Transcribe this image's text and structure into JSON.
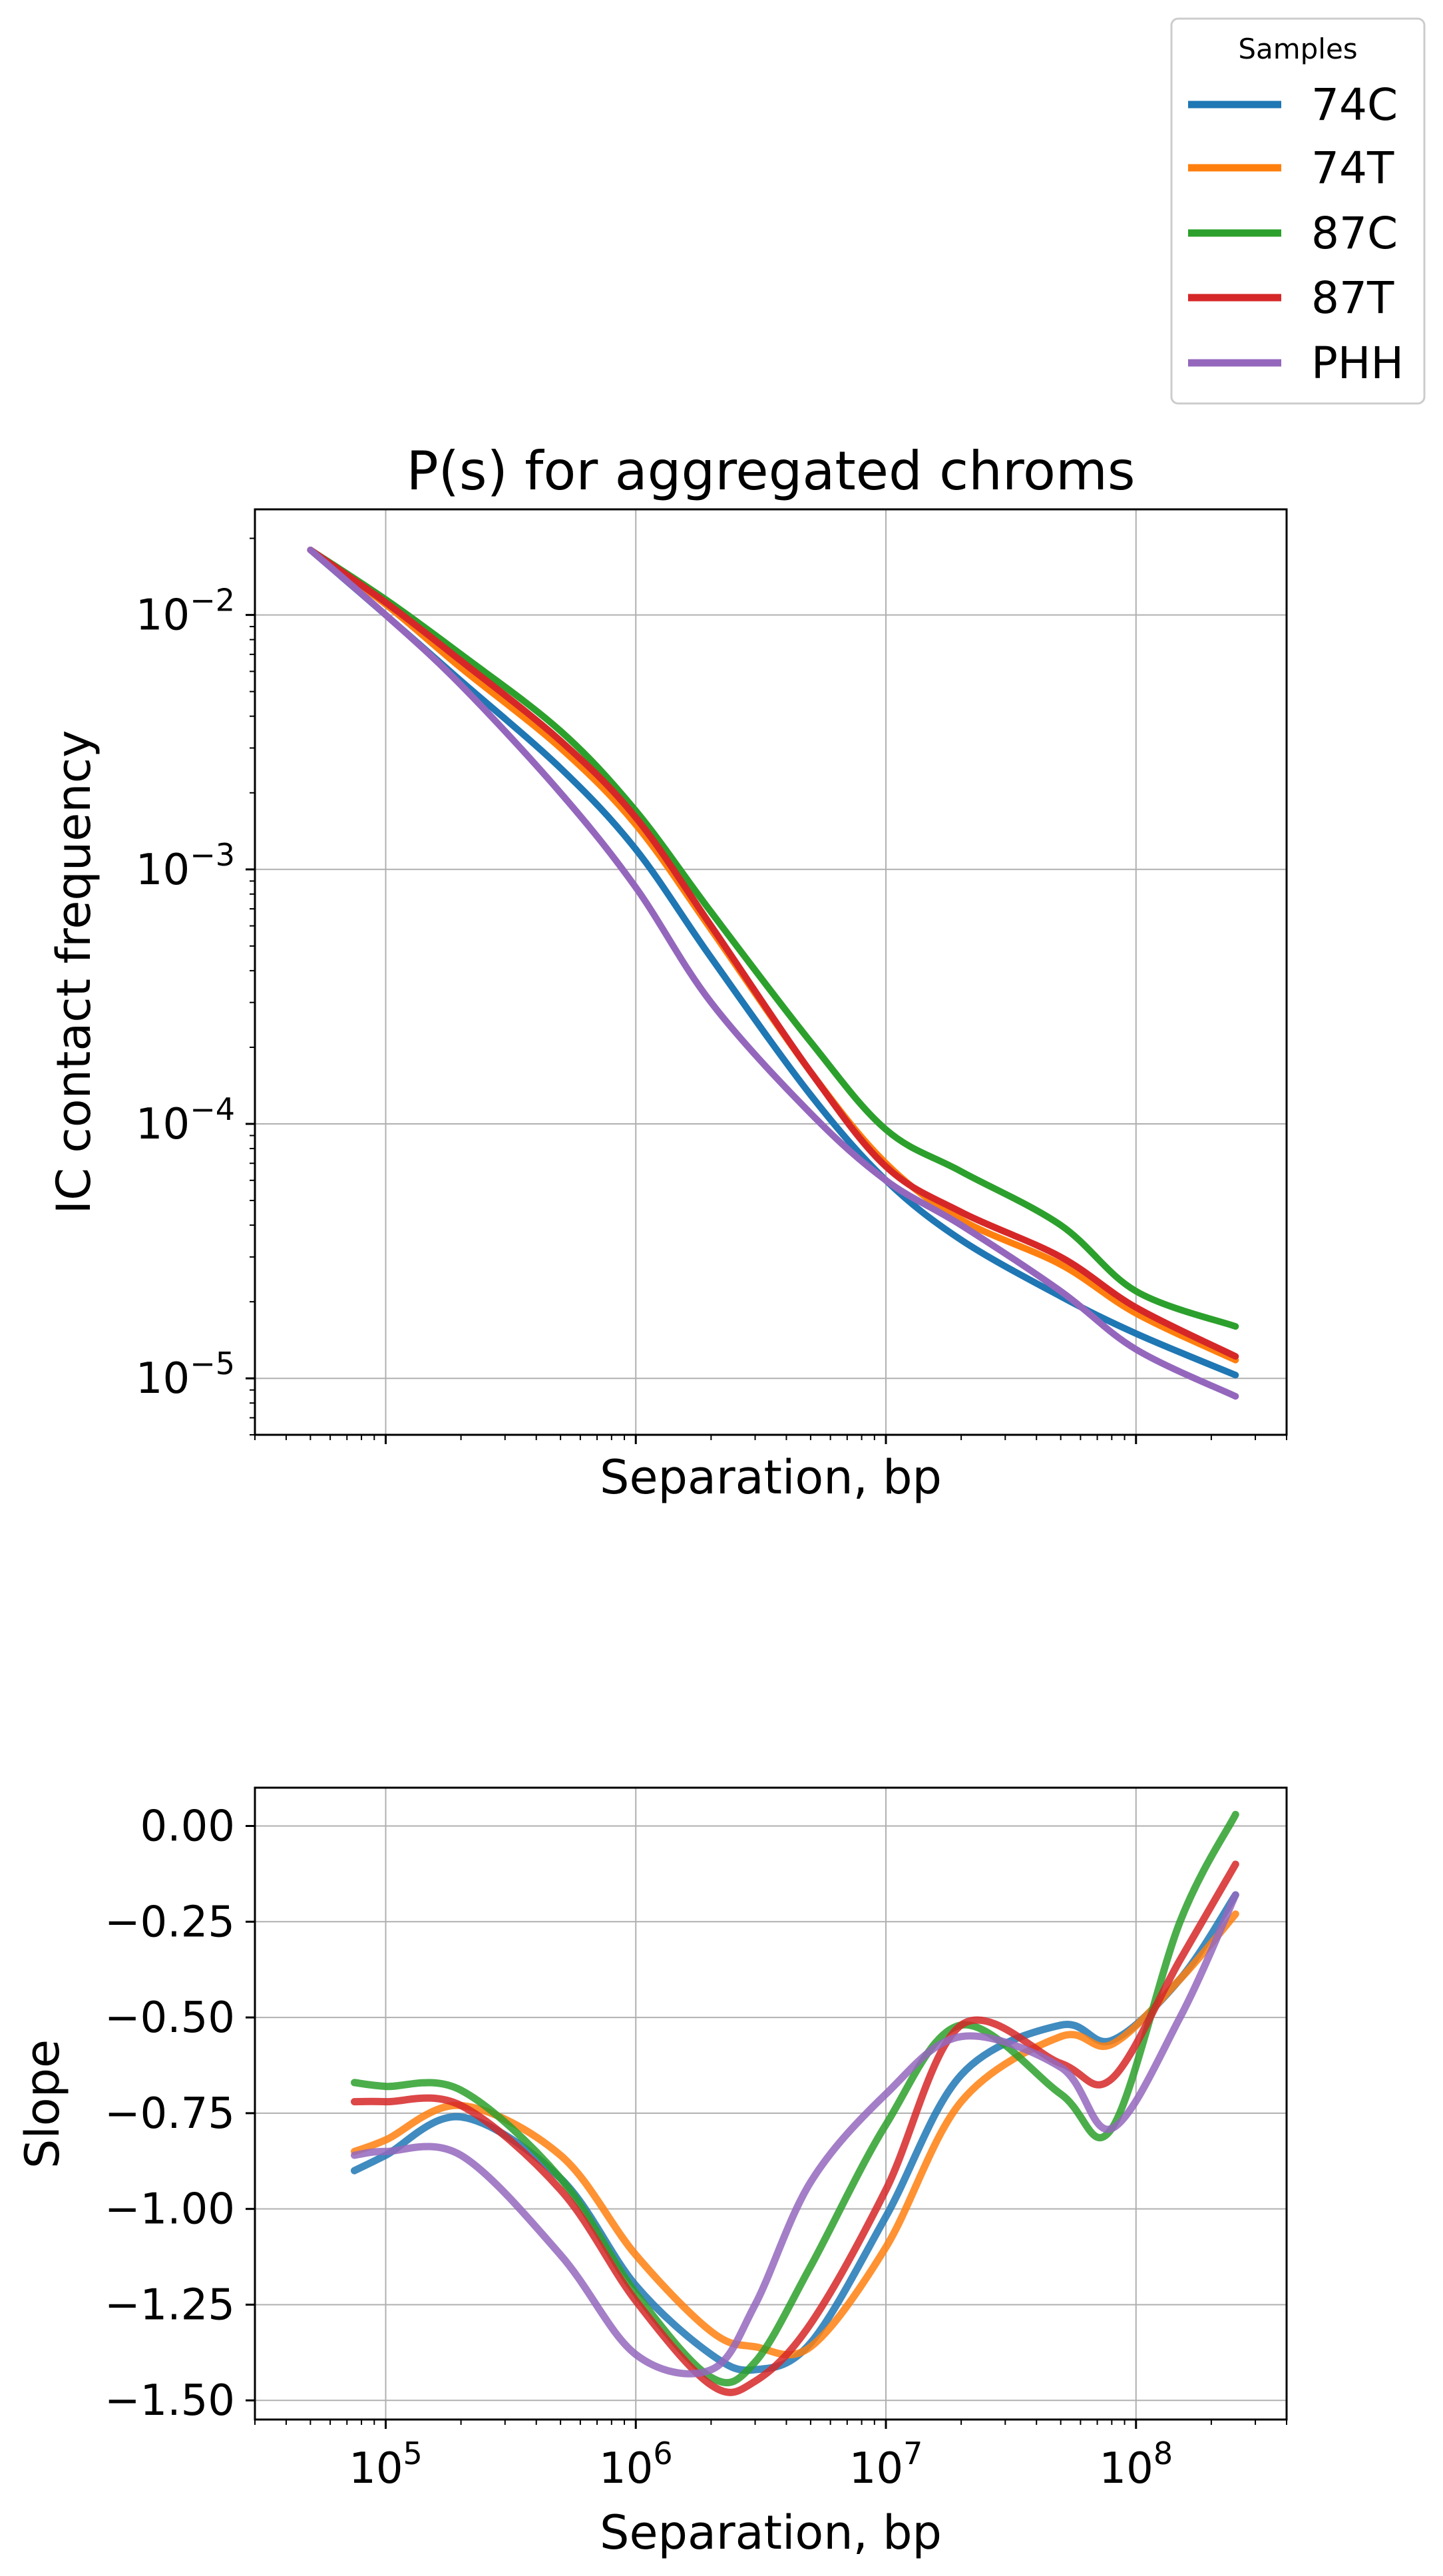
{
  "legend": {
    "title": "Samples",
    "placement": "outside top-right",
    "entries": [
      {
        "label": "74C",
        "color": "#1f77b4"
      },
      {
        "label": "74T",
        "color": "#ff7f0e"
      },
      {
        "label": "87C",
        "color": "#2ca02c"
      },
      {
        "label": "87T",
        "color": "#d62728"
      },
      {
        "label": "PHH",
        "color": "#9467bd"
      }
    ]
  },
  "chart_data": [
    {
      "type": "line",
      "title": "P(s) for aggregated chroms",
      "xlabel": "Separation, bp",
      "ylabel": "IC contact frequency",
      "xscale": "log",
      "yscale": "log",
      "xlim": [
        30000,
        400000000
      ],
      "ylim": [
        6e-06,
        0.026
      ],
      "grid": true,
      "yticks": [
        {
          "value": 0.01,
          "label_base": "10",
          "label_exp": "−2"
        },
        {
          "value": 0.001,
          "label_base": "10",
          "label_exp": "−3"
        },
        {
          "value": 0.0001,
          "label_base": "10",
          "label_exp": "−4"
        },
        {
          "value": 1e-05,
          "label_base": "10",
          "label_exp": "−5"
        }
      ],
      "x": [
        50000,
        100000,
        200000,
        500000,
        1000000,
        2000000,
        5000000,
        10000000,
        20000000,
        50000000,
        100000000,
        250000000
      ],
      "series": [
        {
          "name": "74C",
          "color": "#1f77b4",
          "values": [
            0.018,
            0.01,
            0.0055,
            0.0025,
            0.0012,
            0.00045,
            0.00013,
            6e-05,
            3.5e-05,
            2.1e-05,
            1.5e-05,
            1.03e-05
          ]
        },
        {
          "name": "74T",
          "color": "#ff7f0e",
          "values": [
            0.018,
            0.011,
            0.0062,
            0.003,
            0.0015,
            0.00058,
            0.00016,
            7e-05,
            4.2e-05,
            2.8e-05,
            1.8e-05,
            1.18e-05
          ]
        },
        {
          "name": "87C",
          "color": "#2ca02c",
          "values": [
            0.018,
            0.0115,
            0.007,
            0.0035,
            0.0017,
            0.00068,
            0.00021,
            9.5e-05,
            6.5e-05,
            4e-05,
            2.2e-05,
            1.6e-05
          ]
        },
        {
          "name": "87T",
          "color": "#d62728",
          "values": [
            0.018,
            0.0112,
            0.0066,
            0.0032,
            0.0016,
            0.0006,
            0.00016,
            6.8e-05,
            4.5e-05,
            3e-05,
            1.9e-05,
            1.22e-05
          ]
        },
        {
          "name": "PHH",
          "color": "#9467bd",
          "values": [
            0.018,
            0.01,
            0.0053,
            0.002,
            0.00085,
            0.0003,
            0.00011,
            6e-05,
            4e-05,
            2.2e-05,
            1.3e-05,
            8.5e-06
          ]
        }
      ]
    },
    {
      "type": "line",
      "title": "",
      "xlabel": "Separation, bp",
      "ylabel": "Slope",
      "xscale": "log",
      "yscale": "linear",
      "xlim": [
        30000,
        400000000
      ],
      "ylim": [
        -1.55,
        0.1
      ],
      "grid": true,
      "xticks": [
        {
          "value": 100000,
          "label_base": "10",
          "label_exp": "5"
        },
        {
          "value": 1000000,
          "label_base": "10",
          "label_exp": "6"
        },
        {
          "value": 10000000,
          "label_base": "10",
          "label_exp": "7"
        },
        {
          "value": 100000000,
          "label_base": "10",
          "label_exp": "8"
        }
      ],
      "yticks": [
        {
          "value": 0.0,
          "label": "0.00"
        },
        {
          "value": -0.25,
          "label": "−0.25"
        },
        {
          "value": -0.5,
          "label": "−0.50"
        },
        {
          "value": -0.75,
          "label": "−0.75"
        },
        {
          "value": -1.0,
          "label": "−1.00"
        },
        {
          "value": -1.25,
          "label": "−1.25"
        },
        {
          "value": -1.5,
          "label": "−1.50"
        }
      ],
      "x": [
        75000,
        100000,
        200000,
        500000,
        1000000,
        2000000,
        3000000,
        5000000,
        10000000,
        20000000,
        50000000,
        80000000,
        150000000,
        250000000
      ],
      "series": [
        {
          "name": "74C",
          "color": "#1f77b4",
          "values": [
            -0.9,
            -0.86,
            -0.76,
            -0.92,
            -1.2,
            -1.38,
            -1.42,
            -1.35,
            -1.02,
            -0.65,
            -0.52,
            -0.56,
            -0.4,
            -0.18
          ]
        },
        {
          "name": "74T",
          "color": "#ff7f0e",
          "values": [
            -0.85,
            -0.82,
            -0.73,
            -0.86,
            -1.12,
            -1.32,
            -1.36,
            -1.36,
            -1.1,
            -0.72,
            -0.55,
            -0.57,
            -0.4,
            -0.23
          ]
        },
        {
          "name": "87C",
          "color": "#2ca02c",
          "values": [
            -0.67,
            -0.68,
            -0.69,
            -0.92,
            -1.22,
            -1.44,
            -1.4,
            -1.15,
            -0.78,
            -0.52,
            -0.7,
            -0.79,
            -0.25,
            0.03
          ]
        },
        {
          "name": "87T",
          "color": "#d62728",
          "values": [
            -0.72,
            -0.72,
            -0.73,
            -0.95,
            -1.24,
            -1.46,
            -1.45,
            -1.3,
            -0.95,
            -0.52,
            -0.62,
            -0.66,
            -0.35,
            -0.1
          ]
        },
        {
          "name": "PHH",
          "color": "#9467bd",
          "values": [
            -0.86,
            -0.85,
            -0.86,
            -1.12,
            -1.38,
            -1.42,
            -1.25,
            -0.93,
            -0.7,
            -0.55,
            -0.63,
            -0.79,
            -0.5,
            -0.18
          ]
        }
      ]
    }
  ]
}
